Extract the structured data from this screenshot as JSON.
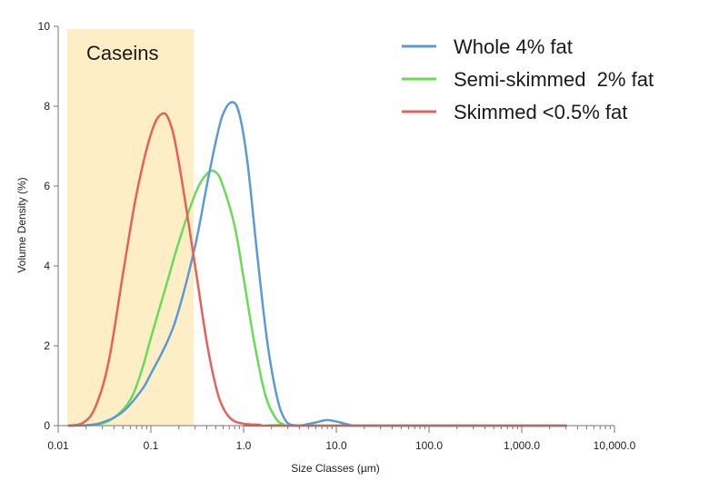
{
  "chart_data": {
    "type": "line",
    "title": "",
    "xlabel": "Size Classes (µm)",
    "ylabel": "Volume Density (%)",
    "xscale": "log",
    "xlim": [
      0.01,
      10000
    ],
    "ylim": [
      0,
      10
    ],
    "grid": false,
    "legend_position": "top-right",
    "x_ticks": [
      {
        "value": 0.01,
        "label": "0.01"
      },
      {
        "value": 0.1,
        "label": "0.1"
      },
      {
        "value": 1,
        "label": "1.0"
      },
      {
        "value": 10,
        "label": "10.0"
      },
      {
        "value": 100,
        "label": "100.0"
      },
      {
        "value": 1000,
        "label": "1,000.0"
      },
      {
        "value": 10000,
        "label": "10,000.0"
      }
    ],
    "y_ticks": [
      {
        "value": 0,
        "label": "0"
      },
      {
        "value": 2,
        "label": "2"
      },
      {
        "value": 4,
        "label": "4"
      },
      {
        "value": 6,
        "label": "6"
      },
      {
        "value": 8,
        "label": "8"
      },
      {
        "value": 10,
        "label": "10"
      }
    ],
    "band": {
      "label": "Caseins",
      "x_range": [
        0.0125,
        0.29
      ],
      "color": "#fdeec5"
    },
    "series": [
      {
        "name": "Whole 4% fat",
        "color": "#5b9bd5",
        "points": [
          [
            0.013,
            0
          ],
          [
            0.02,
            0.01
          ],
          [
            0.03,
            0.08
          ],
          [
            0.05,
            0.35
          ],
          [
            0.08,
            0.9
          ],
          [
            0.1,
            1.3
          ],
          [
            0.15,
            2.1
          ],
          [
            0.2,
            2.9
          ],
          [
            0.3,
            4.5
          ],
          [
            0.4,
            6.0
          ],
          [
            0.5,
            7.1
          ],
          [
            0.6,
            7.8
          ],
          [
            0.75,
            8.1
          ],
          [
            0.9,
            7.8
          ],
          [
            1.1,
            6.6
          ],
          [
            1.4,
            4.3
          ],
          [
            1.8,
            2.1
          ],
          [
            2.3,
            0.7
          ],
          [
            2.8,
            0.15
          ],
          [
            3.3,
            0.02
          ],
          [
            4.0,
            0
          ],
          [
            6,
            0.08
          ],
          [
            8,
            0.14
          ],
          [
            11,
            0.08
          ],
          [
            14,
            0.02
          ],
          [
            18,
            0
          ],
          [
            3000,
            0
          ]
        ]
      },
      {
        "name": "Semi-skimmed  2% fat",
        "color": "#66dd55",
        "points": [
          [
            0.013,
            0
          ],
          [
            0.025,
            0.02
          ],
          [
            0.04,
            0.2
          ],
          [
            0.06,
            0.65
          ],
          [
            0.08,
            1.4
          ],
          [
            0.1,
            2.2
          ],
          [
            0.15,
            3.6
          ],
          [
            0.2,
            4.6
          ],
          [
            0.3,
            5.8
          ],
          [
            0.4,
            6.3
          ],
          [
            0.5,
            6.35
          ],
          [
            0.6,
            6.0
          ],
          [
            0.8,
            5.0
          ],
          [
            1.0,
            3.7
          ],
          [
            1.3,
            2.1
          ],
          [
            1.7,
            0.8
          ],
          [
            2.2,
            0.2
          ],
          [
            2.7,
            0.03
          ],
          [
            3.2,
            0
          ],
          [
            3000,
            0
          ]
        ]
      },
      {
        "name": "Skimmed <0.5% fat",
        "color": "#e8605a",
        "points": [
          [
            0.013,
            0
          ],
          [
            0.018,
            0.05
          ],
          [
            0.025,
            0.45
          ],
          [
            0.035,
            1.6
          ],
          [
            0.05,
            3.8
          ],
          [
            0.07,
            5.8
          ],
          [
            0.1,
            7.3
          ],
          [
            0.13,
            7.8
          ],
          [
            0.16,
            7.6
          ],
          [
            0.2,
            6.6
          ],
          [
            0.3,
            4.0
          ],
          [
            0.4,
            2.1
          ],
          [
            0.5,
            1.0
          ],
          [
            0.6,
            0.45
          ],
          [
            0.75,
            0.15
          ],
          [
            1.0,
            0.05
          ],
          [
            1.5,
            0.02
          ],
          [
            2.0,
            0
          ],
          [
            3000,
            0
          ]
        ]
      }
    ]
  }
}
